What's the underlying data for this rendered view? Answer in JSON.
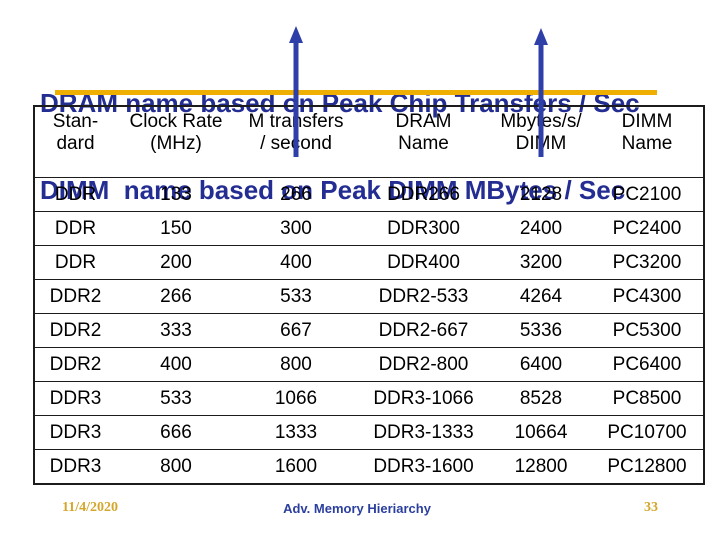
{
  "title": {
    "line1": "DRAM name based on Peak Chip Transfers / Sec",
    "line2": "DIMM  name based on Peak DIMM MBytes / Sec"
  },
  "table": {
    "headers": [
      {
        "line1": "Stan-",
        "line2": "dard"
      },
      {
        "line1": "Clock Rate",
        "line2": "(MHz)"
      },
      {
        "line1": "M transfers",
        "line2": "/ second"
      },
      {
        "line1": "DRAM",
        "line2": "Name"
      },
      {
        "line1": "Mbytes/s/",
        "line2": "DIMM"
      },
      {
        "line1": "DIMM",
        "line2": "Name"
      }
    ],
    "rows": [
      [
        "DDR",
        "133",
        "266",
        "DDR266",
        "2128",
        "PC2100"
      ],
      [
        "DDR",
        "150",
        "300",
        "DDR300",
        "2400",
        "PC2400"
      ],
      [
        "DDR",
        "200",
        "400",
        "DDR400",
        "3200",
        "PC3200"
      ],
      [
        "DDR2",
        "266",
        "533",
        "DDR2-533",
        "4264",
        "PC4300"
      ],
      [
        "DDR2",
        "333",
        "667",
        "DDR2-667",
        "5336",
        "PC5300"
      ],
      [
        "DDR2",
        "400",
        "800",
        "DDR2-800",
        "6400",
        "PC6400"
      ],
      [
        "DDR3",
        "533",
        "1066",
        "DDR3-1066",
        "8528",
        "PC8500"
      ],
      [
        "DDR3",
        "666",
        "1333",
        "DDR3-1333",
        "10664",
        "PC10700"
      ],
      [
        "DDR3",
        "800",
        "1600",
        "DDR3-1600",
        "12800",
        "PC12800"
      ]
    ]
  },
  "icons": {
    "up_arrow": "vertical blue arrow pointing up from table column to title"
  },
  "footer": {
    "date": "11/4/2020",
    "center": "Adv. Memory Hieriarchy",
    "page": "33"
  },
  "colors": {
    "title_blue": "#232d92",
    "arrow_blue": "#2f3fa8",
    "gold_underline": "#efaf00",
    "footer_gold": "#d4a72c",
    "footer_blue": "#2b3f9e",
    "table_border": "#1c1c1c",
    "background": "#ffffff"
  }
}
